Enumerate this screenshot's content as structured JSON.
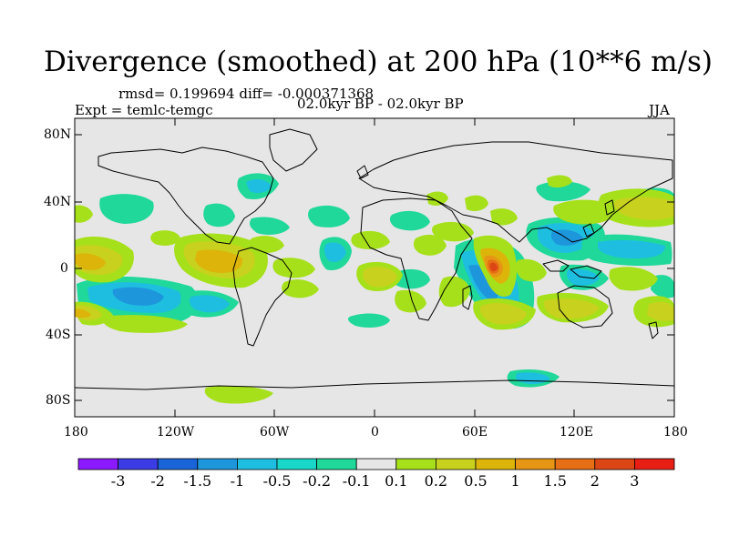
{
  "title": "Divergence (smoothed) at 200 hPa (10**6 m/s)",
  "stats": "rmsd= 0.199694 diff= -0.000371368",
  "experiment": "Expt = temlc-temgc",
  "period": "02.0kyr BP - 02.0kyr BP",
  "season": "JJA",
  "map": {
    "lat_ticks": [
      "80N",
      "40N",
      "0",
      "40S",
      "80S"
    ],
    "lon_ticks": [
      "180",
      "120W",
      "60W",
      "0",
      "60E",
      "120E",
      "180"
    ],
    "background_color": "#e6e6e6"
  },
  "colorbar": {
    "labels": [
      "-3",
      "-2",
      "-1.5",
      "-1",
      "-0.5",
      "-0.2",
      "-0.1",
      "0.1",
      "0.2",
      "0.5",
      "1",
      "1.5",
      "2",
      "3"
    ],
    "colors": [
      "#8c1aff",
      "#3c3ce6",
      "#1a64d9",
      "#1e96dc",
      "#1ebee1",
      "#19d7c8",
      "#1fd89a",
      "#e6e6e6",
      "#a6e01a",
      "#c8d21e",
      "#dcb40a",
      "#e69614",
      "#e66e14",
      "#dc4614",
      "#e61e14"
    ]
  }
}
